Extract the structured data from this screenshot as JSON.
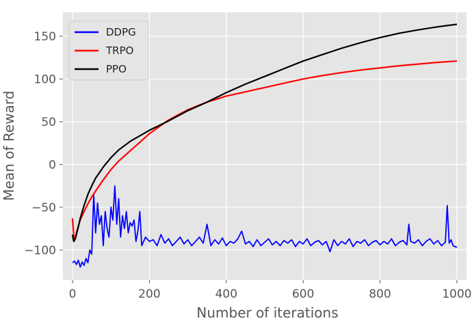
{
  "chart_data": {
    "type": "line",
    "title": "",
    "xlabel": "Number of iterations",
    "ylabel": "Mean of Reward",
    "xlim": [
      -25,
      1025
    ],
    "ylim": [
      -135,
      178
    ],
    "xticks": [
      0,
      200,
      400,
      600,
      800,
      1000
    ],
    "yticks": [
      -100,
      -50,
      0,
      50,
      100,
      150
    ],
    "grid": true,
    "legend_position": "top-left",
    "series": [
      {
        "name": "DDPG",
        "color": "#0000ff",
        "x": [
          0,
          5,
          10,
          15,
          20,
          25,
          30,
          35,
          40,
          45,
          50,
          55,
          60,
          65,
          70,
          75,
          80,
          85,
          90,
          95,
          100,
          105,
          110,
          115,
          120,
          125,
          130,
          135,
          140,
          145,
          150,
          155,
          160,
          165,
          170,
          175,
          180,
          190,
          200,
          210,
          220,
          230,
          240,
          250,
          260,
          270,
          280,
          290,
          300,
          310,
          320,
          330,
          340,
          350,
          360,
          370,
          380,
          390,
          400,
          410,
          420,
          430,
          440,
          450,
          460,
          470,
          480,
          490,
          500,
          510,
          520,
          530,
          540,
          550,
          560,
          570,
          580,
          590,
          600,
          610,
          620,
          630,
          640,
          650,
          660,
          670,
          680,
          690,
          700,
          710,
          720,
          730,
          740,
          750,
          760,
          770,
          780,
          790,
          800,
          810,
          820,
          830,
          840,
          850,
          860,
          870,
          875,
          880,
          890,
          900,
          910,
          920,
          930,
          940,
          950,
          960,
          970,
          975,
          980,
          985,
          990,
          1000
        ],
        "y": [
          -115,
          -113,
          -117,
          -112,
          -120,
          -114,
          -118,
          -110,
          -115,
          -100,
          -105,
          -35,
          -80,
          -45,
          -70,
          -60,
          -95,
          -55,
          -75,
          -85,
          -50,
          -65,
          -25,
          -70,
          -40,
          -85,
          -60,
          -75,
          -55,
          -80,
          -68,
          -72,
          -65,
          -90,
          -78,
          -55,
          -95,
          -85,
          -90,
          -88,
          -95,
          -82,
          -92,
          -87,
          -95,
          -90,
          -85,
          -93,
          -88,
          -95,
          -90,
          -85,
          -92,
          -70,
          -95,
          -88,
          -93,
          -86,
          -95,
          -90,
          -92,
          -87,
          -78,
          -93,
          -90,
          -96,
          -88,
          -95,
          -91,
          -87,
          -94,
          -90,
          -95,
          -89,
          -92,
          -88,
          -96,
          -90,
          -93,
          -87,
          -95,
          -91,
          -89,
          -94,
          -90,
          -102,
          -88,
          -95,
          -90,
          -93,
          -87,
          -96,
          -90,
          -92,
          -88,
          -95,
          -91,
          -89,
          -94,
          -90,
          -93,
          -87,
          -95,
          -91,
          -89,
          -94,
          -70,
          -90,
          -92,
          -88,
          -95,
          -90,
          -87,
          -93,
          -89,
          -95,
          -91,
          -48,
          -92,
          -88,
          -95,
          -97
        ]
      },
      {
        "name": "TRPO",
        "color": "#ff0000",
        "x": [
          0,
          3,
          5,
          8,
          10,
          15,
          20,
          30,
          40,
          50,
          60,
          80,
          100,
          120,
          150,
          200,
          250,
          300,
          350,
          400,
          450,
          500,
          550,
          600,
          650,
          700,
          750,
          800,
          850,
          900,
          950,
          1000
        ],
        "y": [
          -63,
          -82,
          -88,
          -85,
          -80,
          -72,
          -65,
          -55,
          -46,
          -38,
          -31,
          -18,
          -6,
          4,
          16,
          36,
          52,
          64,
          73,
          80,
          85,
          90,
          95,
          100,
          104,
          107.5,
          110.5,
          113,
          115.5,
          117.5,
          119.5,
          121
        ]
      },
      {
        "name": "PPO",
        "color": "#000000",
        "x": [
          0,
          3,
          5,
          8,
          10,
          15,
          20,
          30,
          40,
          50,
          60,
          80,
          100,
          120,
          150,
          200,
          250,
          300,
          350,
          400,
          450,
          500,
          550,
          600,
          650,
          700,
          750,
          800,
          850,
          900,
          950,
          1000
        ],
        "y": [
          -82,
          -90,
          -89,
          -86,
          -82,
          -73,
          -63,
          -48,
          -35,
          -25,
          -16,
          -3,
          8,
          17,
          27,
          40,
          51,
          63,
          73,
          84,
          94,
          103,
          112,
          121,
          128.5,
          136,
          142.5,
          148.5,
          153.5,
          157.5,
          161,
          164
        ]
      }
    ]
  }
}
